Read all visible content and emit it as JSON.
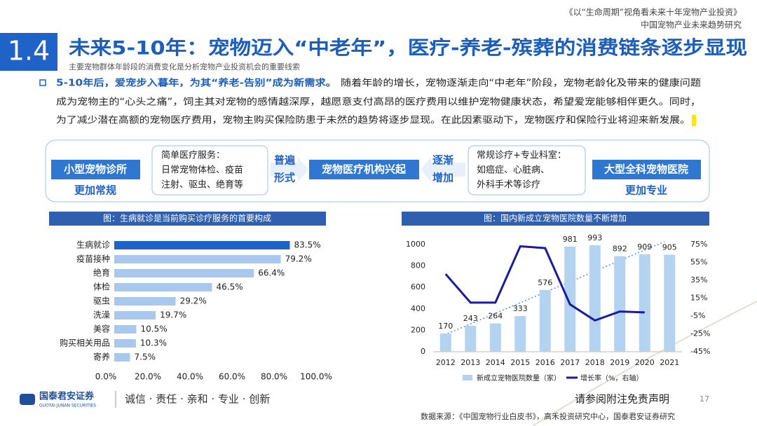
{
  "header": {
    "report": "《以“生命周期”视角看未来十年宠物产业投资》",
    "subtitle": "中国宠物产业未来趋势研究"
  },
  "section": {
    "number": "1.4",
    "title": "未来5-10年：宠物迈入“中老年”，医疗-养老-殡葬的消费链条逐步显现",
    "subtitle": "主要宠物群体年龄段的消费变化是分析宠物产业投资机会的重要线索"
  },
  "bullet": {
    "bold": "5-10年后，爱宠步入暮年，为其“养老-告别”成为新需求。",
    "lines": [
      "随着年龄的增长，宠物逐渐走向“中老年”阶段，宠物老龄化及带来的健康问题",
      "成为宠物主的“心头之痛”，饲主其对宠物的感情越深厚，越愿意支付高昂的医疗费用以维护宠物健康状态，希望爱宠能够相伴更久。同时，",
      "为了减少潜在高额的宠物医疗费用，宠物主购买保险防患于未然的趋势将逐步显现。在此因素驱动下，宠物医疗和保险行业将迎来新发展。"
    ]
  },
  "flow": {
    "left": {
      "label": "小型宠物诊所",
      "note": "更加常规"
    },
    "left_box": [
      "简单医疗服务：",
      "日常宠物体检、疫苗",
      "注射、驱虫、绝育等"
    ],
    "left_arrow": [
      "普遍",
      "形式"
    ],
    "center": "宠物医疗机构兴起",
    "right_arrow": [
      "逐渐",
      "增加"
    ],
    "right_box": [
      "常规诊疗+专业科室：",
      "如癌症、心脏病、",
      "外科手术等诊疗"
    ],
    "right": {
      "label": "大型全科宠物医院",
      "note": "更加专业"
    }
  },
  "chart_data": [
    {
      "type": "barh",
      "title": "图：生病就诊是当前购买诊疗服务的首要构成",
      "categories": [
        "生病就诊",
        "疫苗接种",
        "绝育",
        "体检",
        "驱虫",
        "洗澡",
        "美容",
        "购买相关用品",
        "寄养"
      ],
      "values": [
        83.5,
        79.2,
        66.4,
        46.5,
        29.2,
        19.7,
        10.5,
        10.3,
        7.5
      ],
      "value_labels": [
        "83.5%",
        "79.2%",
        "66.4%",
        "46.5%",
        "29.2%",
        "19.7%",
        "10.5%",
        "10.3%",
        "7.5%"
      ],
      "colors": [
        "#1f63c9",
        "#a8c8ee"
      ],
      "xlim": [
        0,
        100
      ],
      "xticks": [
        {
          "value": 0,
          "label": "0.0%"
        },
        {
          "value": 20,
          "label": "20.0%"
        },
        {
          "value": 40,
          "label": "40.0%"
        },
        {
          "value": 60,
          "label": "60.0%"
        },
        {
          "value": 80,
          "label": "80.0%"
        },
        {
          "value": 100,
          "label": "100.0%"
        }
      ]
    },
    {
      "type": "bar",
      "title": "图：国内新成立宠物医院数量不断增加",
      "categories": [
        "2012",
        "2013",
        "2014",
        "2015",
        "2016",
        "2017",
        "2018",
        "2019",
        "2020",
        "2021"
      ],
      "series": [
        {
          "name": "新成立宠物医院数量（家）",
          "type": "bar",
          "color": "#b3d3f1",
          "values": [
            170,
            243,
            264,
            333,
            576,
            981,
            993,
            892,
            909,
            905
          ]
        },
        {
          "name": "增长率（%，右轴）",
          "type": "line",
          "axis": "y2",
          "color": "#1b1b9e",
          "values": [
            42,
            10,
            10,
            73,
            71,
            8,
            -10,
            0,
            -1,
            null
          ]
        }
      ],
      "ylim": [
        0,
        1000
      ],
      "yticks": [
        0,
        200,
        400,
        600,
        800,
        1000
      ],
      "y2lim": [
        -45,
        75
      ],
      "y2ticks": [
        {
          "value": 75,
          "label": "75%"
        },
        {
          "value": 55,
          "label": "55%"
        },
        {
          "value": 35,
          "label": "35%"
        },
        {
          "value": 15,
          "label": "15%"
        },
        {
          "value": -5,
          "label": "-5%"
        },
        {
          "value": -25,
          "label": "-25%"
        },
        {
          "value": -45,
          "label": "-45%"
        }
      ]
    }
  ],
  "footer": {
    "company": "国泰君安证券",
    "company_en": "GUOTAI JUNAN SECURITIES",
    "slogan": "诚信 · 责任 · 亲和 · 专业 · 创新",
    "disclaimer": "请参阅附注免责声明",
    "page": "17",
    "source": "数据来源：《中国宠物行业白皮书》，高禾投资研究中心，国泰君安证券研究"
  }
}
